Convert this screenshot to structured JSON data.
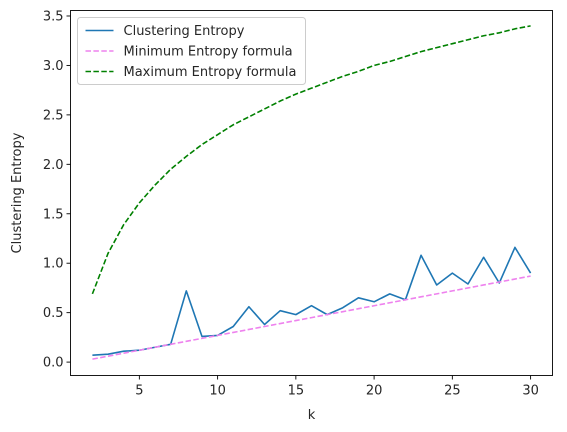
{
  "chart_data": {
    "type": "line",
    "title": "",
    "xlabel": "k",
    "ylabel": "Clustering Entropy",
    "xlim": [
      0.6,
      31.4
    ],
    "ylim": [
      -0.1355,
      3.5555
    ],
    "xticks": [
      5,
      10,
      15,
      20,
      25,
      30
    ],
    "xtick_labels": [
      "5",
      "10",
      "15",
      "20",
      "25",
      "30"
    ],
    "yticks": [
      0.0,
      0.5,
      1.0,
      1.5,
      2.0,
      2.5,
      3.0,
      3.5
    ],
    "ytick_labels": [
      "0.0",
      "0.5",
      "1.0",
      "1.5",
      "2.0",
      "2.5",
      "3.0",
      "3.5"
    ],
    "grid": false,
    "legend_position": "top-left",
    "x": [
      2,
      3,
      4,
      5,
      6,
      7,
      8,
      9,
      10,
      11,
      12,
      13,
      14,
      15,
      16,
      17,
      18,
      19,
      20,
      21,
      22,
      23,
      24,
      25,
      26,
      27,
      28,
      29,
      30
    ],
    "series": [
      {
        "name": "Clustering Entropy",
        "color": "#1f77b4",
        "style": "solid",
        "values": [
          0.07,
          0.08,
          0.11,
          0.12,
          0.15,
          0.18,
          0.72,
          0.26,
          0.27,
          0.36,
          0.56,
          0.38,
          0.52,
          0.48,
          0.57,
          0.48,
          0.55,
          0.65,
          0.61,
          0.69,
          0.63,
          1.08,
          0.78,
          0.9,
          0.79,
          1.06,
          0.8,
          1.16,
          0.9
        ]
      },
      {
        "name": "Minimum Entropy formula",
        "color": "#ee82ee",
        "style": "dashed",
        "values": [
          0.03,
          0.06,
          0.09,
          0.12,
          0.15,
          0.18,
          0.21,
          0.24,
          0.27,
          0.3,
          0.33,
          0.36,
          0.39,
          0.42,
          0.45,
          0.48,
          0.51,
          0.54,
          0.57,
          0.6,
          0.63,
          0.66,
          0.69,
          0.72,
          0.75,
          0.78,
          0.81,
          0.84,
          0.87
        ]
      },
      {
        "name": "Maximum Entropy formula",
        "color": "#008000",
        "style": "dashed",
        "values": [
          0.69,
          1.1,
          1.39,
          1.61,
          1.79,
          1.95,
          2.08,
          2.2,
          2.3,
          2.4,
          2.48,
          2.56,
          2.64,
          2.71,
          2.77,
          2.83,
          2.89,
          2.94,
          3.0,
          3.04,
          3.09,
          3.14,
          3.18,
          3.22,
          3.26,
          3.3,
          3.33,
          3.37,
          3.4
        ]
      }
    ]
  }
}
